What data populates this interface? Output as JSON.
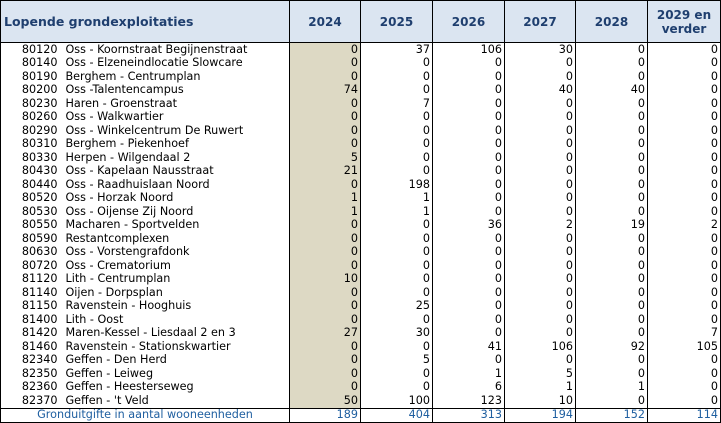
{
  "header": {
    "title": "Lopende grondexploitaties",
    "years": [
      "2024",
      "2025",
      "2026",
      "2027",
      "2028",
      "2029 en verder"
    ]
  },
  "rows": [
    {
      "code": "80120",
      "name": "Oss - Koornstraat Begijnenstraat",
      "values": [
        "0",
        "37",
        "106",
        "30",
        "0",
        "0"
      ]
    },
    {
      "code": "80140",
      "name": "Oss - Elzeneindlocatie Slowcare",
      "values": [
        "0",
        "0",
        "0",
        "0",
        "0",
        "0"
      ]
    },
    {
      "code": "80190",
      "name": "Berghem - Centrumplan",
      "values": [
        "0",
        "0",
        "0",
        "0",
        "0",
        "0"
      ]
    },
    {
      "code": "80200",
      "name": "Oss -Talentencampus",
      "values": [
        "74",
        "0",
        "0",
        "40",
        "40",
        "0"
      ]
    },
    {
      "code": "80230",
      "name": "Haren - Groenstraat",
      "values": [
        "0",
        "7",
        "0",
        "0",
        "0",
        "0"
      ]
    },
    {
      "code": "80260",
      "name": "Oss - Walkwartier",
      "values": [
        "0",
        "0",
        "0",
        "0",
        "0",
        "0"
      ]
    },
    {
      "code": "80290",
      "name": "Oss - Winkelcentrum De Ruwert",
      "values": [
        "0",
        "0",
        "0",
        "0",
        "0",
        "0"
      ]
    },
    {
      "code": "80310",
      "name": "Berghem - Piekenhoef",
      "values": [
        "0",
        "0",
        "0",
        "0",
        "0",
        "0"
      ]
    },
    {
      "code": "80330",
      "name": "Herpen - Wilgendaal 2",
      "values": [
        "5",
        "0",
        "0",
        "0",
        "0",
        "0"
      ]
    },
    {
      "code": "80430",
      "name": "Oss - Kapelaan Nausstraat",
      "values": [
        "21",
        "0",
        "0",
        "0",
        "0",
        "0"
      ]
    },
    {
      "code": "80440",
      "name": "Oss - Raadhuislaan Noord",
      "values": [
        "0",
        "198",
        "0",
        "0",
        "0",
        "0"
      ]
    },
    {
      "code": "80520",
      "name": "Oss - Horzak Noord",
      "values": [
        "1",
        "1",
        "0",
        "0",
        "0",
        "0"
      ]
    },
    {
      "code": "80530",
      "name": "Oss - Oijense Zij Noord",
      "values": [
        "1",
        "1",
        "0",
        "0",
        "0",
        "0"
      ]
    },
    {
      "code": "80550",
      "name": "Macharen - Sportvelden",
      "values": [
        "0",
        "0",
        "36",
        "2",
        "19",
        "2"
      ]
    },
    {
      "code": "80590",
      "name": "Restantcomplexen",
      "values": [
        "0",
        "0",
        "0",
        "0",
        "0",
        "0"
      ]
    },
    {
      "code": "80630",
      "name": "Oss - Vorstengrafdonk",
      "values": [
        "0",
        "0",
        "0",
        "0",
        "0",
        "0"
      ]
    },
    {
      "code": "80720",
      "name": "Oss - Crematorium",
      "values": [
        "0",
        "0",
        "0",
        "0",
        "0",
        "0"
      ]
    },
    {
      "code": "81120",
      "name": "Lith - Centrumplan",
      "values": [
        "10",
        "0",
        "0",
        "0",
        "0",
        "0"
      ]
    },
    {
      "code": "81140",
      "name": "Oijen - Dorpsplan",
      "values": [
        "0",
        "0",
        "0",
        "0",
        "0",
        "0"
      ]
    },
    {
      "code": "81150",
      "name": "Ravenstein - Hooghuis",
      "values": [
        "0",
        "25",
        "0",
        "0",
        "0",
        "0"
      ]
    },
    {
      "code": "81400",
      "name": "Lith - Oost",
      "values": [
        "0",
        "0",
        "0",
        "0",
        "0",
        "0"
      ]
    },
    {
      "code": "81420",
      "name": "Maren-Kessel - Liesdaal 2 en 3",
      "values": [
        "27",
        "30",
        "0",
        "0",
        "0",
        "7"
      ]
    },
    {
      "code": "81460",
      "name": "Ravenstein - Stationskwartier",
      "values": [
        "0",
        "0",
        "41",
        "106",
        "92",
        "105"
      ]
    },
    {
      "code": "82340",
      "name": "Geffen - Den Herd",
      "values": [
        "0",
        "5",
        "0",
        "0",
        "0",
        "0"
      ]
    },
    {
      "code": "82350",
      "name": "Geffen - Leiweg",
      "values": [
        "0",
        "0",
        "1",
        "5",
        "0",
        "0"
      ]
    },
    {
      "code": "82360",
      "name": "Geffen - Heesterseweg",
      "values": [
        "0",
        "0",
        "6",
        "1",
        "1",
        "0"
      ]
    },
    {
      "code": "82370",
      "name": "Geffen - 't Veld",
      "values": [
        "50",
        "100",
        "123",
        "10",
        "0",
        "0"
      ]
    }
  ],
  "total": {
    "label": "Gronduitgifte in aantal wooneenheden",
    "values": [
      "189",
      "404",
      "313",
      "194",
      "152",
      "114"
    ]
  },
  "colors": {
    "header_bg": "#dbe5f1",
    "header_text": "#1f3f6f",
    "shaded_column": "#ddd9c4",
    "total_text": "#1f5fa0"
  }
}
